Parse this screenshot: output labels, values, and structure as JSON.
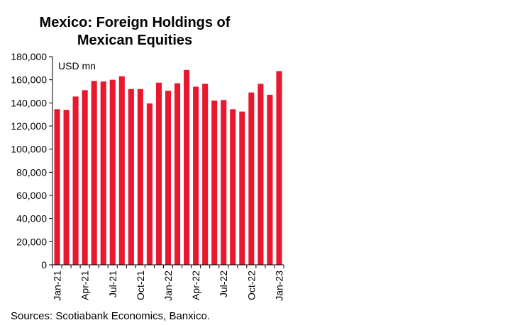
{
  "chart_title_line1": "Mexico: Foreign Holdings of",
  "chart_title_line2": "Mexican Equities",
  "source": "Sources: Scotiabank Economics, Banxico.",
  "chart_data": {
    "type": "bar",
    "title": "Mexico: Foreign Holdings of Mexican Equities",
    "unit_label": "USD mn",
    "bar_color": "#e8182f",
    "ylim": [
      0,
      180000
    ],
    "ytick_values": [
      0,
      20000,
      40000,
      60000,
      80000,
      100000,
      120000,
      140000,
      160000,
      180000
    ],
    "ytick_labels": [
      "0",
      "20,000",
      "40,000",
      "60,000",
      "80,000",
      "100,000",
      "120,000",
      "140,000",
      "160,000",
      "180,000"
    ],
    "grid": false,
    "categories": [
      "Jan-21",
      "Feb-21",
      "Mar-21",
      "Apr-21",
      "May-21",
      "Jun-21",
      "Jul-21",
      "Aug-21",
      "Sep-21",
      "Oct-21",
      "Nov-21",
      "Dec-21",
      "Jan-22",
      "Feb-22",
      "Mar-22",
      "Apr-22",
      "May-22",
      "Jun-22",
      "Jul-22",
      "Aug-22",
      "Sep-22",
      "Oct-22",
      "Nov-22",
      "Dec-22",
      "Jan-23"
    ],
    "xtick_labels": [
      "Jan-21",
      "",
      "",
      "Apr-21",
      "",
      "",
      "Jul-21",
      "",
      "",
      "Oct-21",
      "",
      "",
      "Jan-22",
      "",
      "",
      "Apr-22",
      "",
      "",
      "Jul-22",
      "",
      "",
      "Oct-22",
      "",
      "",
      "Jan-23"
    ],
    "values": [
      134500,
      134000,
      145500,
      151000,
      159000,
      158500,
      160000,
      163000,
      152000,
      152000,
      139500,
      157500,
      150500,
      157000,
      168500,
      154000,
      156500,
      142000,
      142500,
      134500,
      132500,
      149000,
      156500,
      147000,
      167500
    ]
  }
}
